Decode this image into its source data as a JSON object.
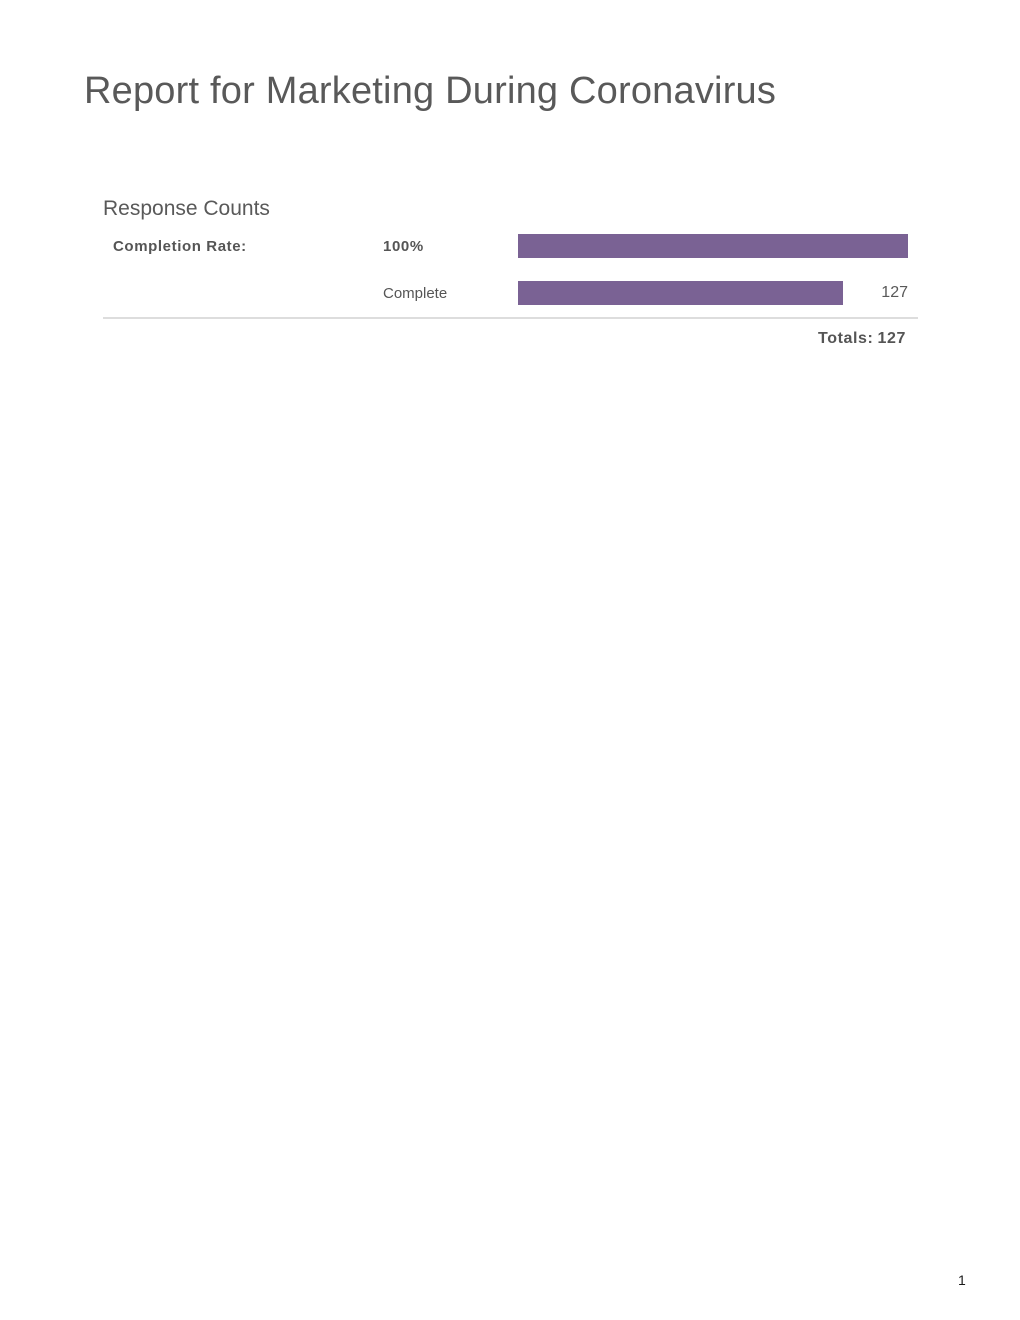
{
  "document": {
    "title": "Report for Marketing During Coronavirus",
    "page_number": "1"
  },
  "response_counts": {
    "heading": "Response Counts",
    "completion_rate": {
      "label": "Completion Rate:",
      "value": "100%",
      "bar_percent": 100
    },
    "complete": {
      "label": "Complete",
      "count": "127",
      "bar_percent": 83.3
    },
    "totals": {
      "label": "Totals:",
      "value": "127"
    }
  },
  "colors": {
    "bar_fill": "#7A6294",
    "body_text": "#595959",
    "divider": "#DDDDDD"
  },
  "chart_data": {
    "type": "bar",
    "title": "Response Counts",
    "categories": [
      "Completion Rate",
      "Complete"
    ],
    "values": [
      100,
      127
    ],
    "value_labels": [
      "100%",
      "127"
    ],
    "bar_widths_percent": [
      100,
      83.3
    ],
    "totals": 127,
    "bar_color": "#7A6294",
    "legend_position": "none",
    "grid": false
  }
}
